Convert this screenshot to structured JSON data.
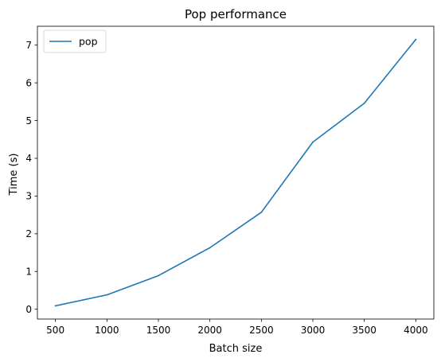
{
  "chart_data": {
    "type": "line",
    "title": "Pop performance",
    "xlabel": "Batch size",
    "ylabel": "Time (s)",
    "x": [
      500,
      1000,
      1500,
      2000,
      2500,
      3000,
      3500,
      4000
    ],
    "series": [
      {
        "name": "pop",
        "color": "#1f77b4",
        "values": [
          0.09,
          0.38,
          0.89,
          1.63,
          2.57,
          4.43,
          5.46,
          7.15
        ]
      }
    ],
    "xlim": [
      325,
      4175
    ],
    "ylim": [
      -0.26,
      7.5
    ],
    "x_ticks": [
      500,
      1000,
      1500,
      2000,
      2500,
      3000,
      3500,
      4000
    ],
    "y_ticks": [
      0,
      1,
      2,
      3,
      4,
      5,
      6,
      7
    ],
    "legend": "upper-left",
    "grid": false
  }
}
